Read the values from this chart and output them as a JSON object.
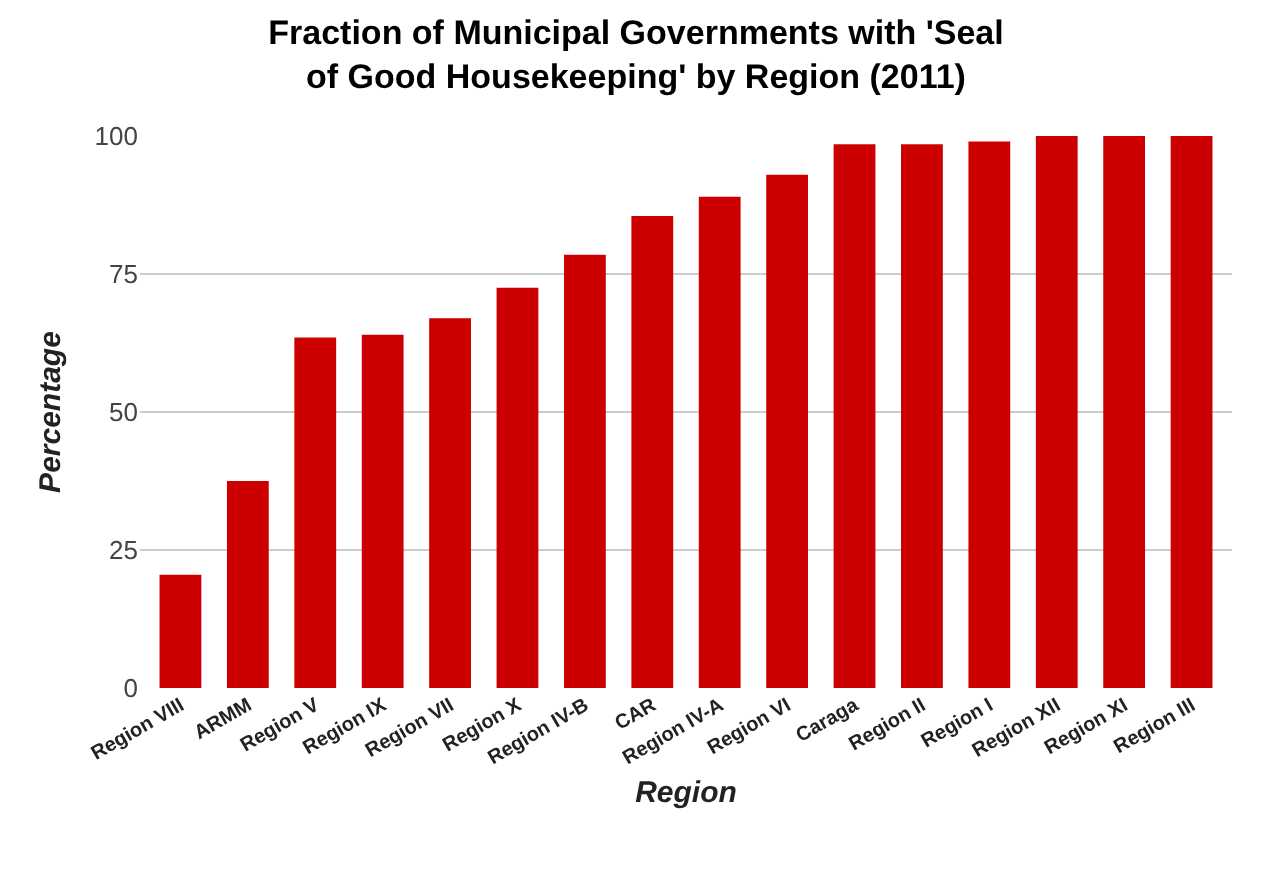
{
  "chart_data": {
    "type": "bar",
    "title": "Fraction of Municipal Governments with 'Seal of Good Housekeeping' by Region (2011)",
    "xlabel": "Region",
    "ylabel": "Percentage",
    "categories": [
      "Region VIII",
      "ARMM",
      "Region V",
      "Region IX",
      "Region VII",
      "Region X",
      "Region IV-B",
      "CAR",
      "Region IV-A",
      "Region VI",
      "Caraga",
      "Region II",
      "Region I",
      "Region XII",
      "Region XI",
      "Region III"
    ],
    "values": [
      20.5,
      37.5,
      63.5,
      64,
      67,
      72.5,
      78.5,
      85.5,
      89,
      93,
      98.5,
      98.5,
      99,
      100,
      100,
      100
    ],
    "color": "#cc0000",
    "ylim": [
      0,
      100
    ],
    "yticks": [
      0,
      25,
      50,
      75,
      100
    ],
    "grid": "y"
  }
}
